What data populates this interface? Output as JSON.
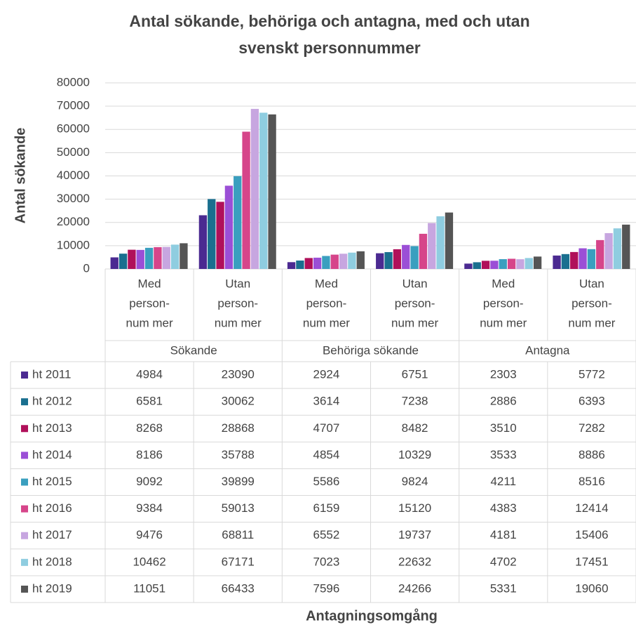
{
  "chart_data": {
    "type": "bar",
    "title": [
      "Antal sökande, behöriga och antagna, med och utan",
      "svenskt personnummer"
    ],
    "y_label": "Antal sökande",
    "x_label": "Antagningsomgång",
    "groups": [
      "Sökande",
      "Behöriga sökande",
      "Antagna"
    ],
    "categories": [
      [
        "Med",
        "person-",
        "num mer"
      ],
      [
        "Utan",
        "person-",
        "num mer"
      ],
      [
        "Med",
        "person-",
        "num mer"
      ],
      [
        "Utan",
        "person-",
        "num mer"
      ],
      [
        "Med",
        "person-",
        "num mer"
      ],
      [
        "Utan",
        "person-",
        "num mer"
      ]
    ],
    "series": [
      {
        "name": "ht 2011",
        "color": "#4b2a91",
        "values": [
          4984,
          23090,
          2924,
          6751,
          2303,
          5772
        ]
      },
      {
        "name": "ht 2012",
        "color": "#1a6f8f",
        "values": [
          6581,
          30062,
          3614,
          7238,
          2886,
          6393
        ]
      },
      {
        "name": "ht 2013",
        "color": "#b0105a",
        "values": [
          8268,
          28868,
          4707,
          8482,
          3510,
          7282
        ]
      },
      {
        "name": "ht 2014",
        "color": "#9b4fd6",
        "values": [
          8186,
          35788,
          4854,
          10329,
          3533,
          8886
        ]
      },
      {
        "name": "ht 2015",
        "color": "#3a9fbf",
        "values": [
          9092,
          39899,
          5586,
          9824,
          4211,
          8516
        ]
      },
      {
        "name": "ht 2016",
        "color": "#d6458a",
        "values": [
          9384,
          59013,
          6159,
          15120,
          4383,
          12414
        ]
      },
      {
        "name": "ht 2017",
        "color": "#c7a6e0",
        "values": [
          9476,
          68811,
          6552,
          19737,
          4181,
          15406
        ]
      },
      {
        "name": "ht 2018",
        "color": "#8fcde0",
        "values": [
          10462,
          67171,
          7023,
          22632,
          4702,
          17451
        ]
      },
      {
        "name": "ht 2019",
        "color": "#555555",
        "values": [
          11051,
          66433,
          7596,
          24266,
          5331,
          19060
        ]
      }
    ],
    "ylim": [
      0,
      80000
    ],
    "yticks": [
      0,
      10000,
      20000,
      30000,
      40000,
      50000,
      60000,
      70000,
      80000
    ],
    "grid": true
  }
}
